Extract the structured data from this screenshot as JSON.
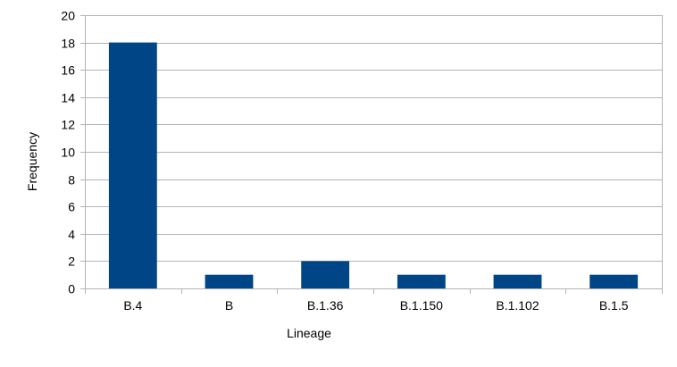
{
  "chart_data": {
    "type": "bar",
    "title": "",
    "xlabel": "Lineage",
    "ylabel": "Frequency",
    "categories": [
      "B.4",
      "B",
      "B.1.36",
      "B.1.150",
      "B.1.102",
      "B.1.5"
    ],
    "values": [
      18,
      1,
      2,
      1,
      1,
      1
    ],
    "ylim": [
      0,
      20
    ],
    "yticks": [
      "0",
      "2",
      "4",
      "6",
      "8",
      "10",
      "12",
      "14",
      "16",
      "18",
      "20"
    ],
    "grid": true,
    "legend": "none",
    "bar_color": "#004586",
    "grid_color": "#b3b3b3"
  }
}
